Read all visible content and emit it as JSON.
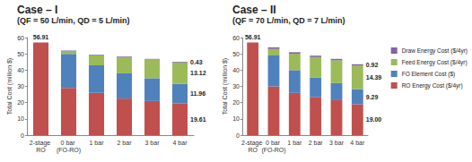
{
  "chart_data": [
    {
      "type": "bar",
      "title": "Case – I",
      "subtitle": "(QF = 50 L/min, QD = 5 L/min)",
      "ylabel": "Total Cost (million $)",
      "stacked": true,
      "grid": false,
      "data_labels": true,
      "categories": [
        "2-stage RO",
        "0 bar (FO-RO)",
        "1 bar",
        "2 bar",
        "3 bar",
        "4 bar"
      ],
      "ylim": [
        0,
        60
      ],
      "yticks": [
        0,
        10,
        20,
        30,
        40,
        50,
        60
      ],
      "series": [
        {
          "name": "RO Energy Cost ($/4yr)",
          "color": "#c0504d",
          "values": [
            56.91,
            29,
            26,
            22.5,
            21,
            19.61
          ],
          "value_labels": [
            "56.91",
            null,
            null,
            null,
            null,
            "19.61"
          ]
        },
        {
          "name": "FO Element Cost ($)",
          "color": "#4f81bd",
          "values": [
            null,
            21,
            17,
            15.5,
            14,
            11.96
          ],
          "value_labels": [
            null,
            null,
            null,
            null,
            null,
            "11.96"
          ]
        },
        {
          "name": "Feed Energy Cost ($/4yr)",
          "color": "#9bbb59",
          "values": [
            null,
            1.5,
            6,
            10,
            11.5,
            13.12
          ],
          "value_labels": [
            null,
            null,
            null,
            null,
            null,
            "13.12"
          ]
        },
        {
          "name": "Draw Energy Cost ($/4yr)",
          "color": "#8064a2",
          "values": [
            null,
            0.5,
            0.4,
            0.4,
            0.4,
            0.43
          ],
          "value_labels": [
            null,
            null,
            null,
            null,
            null,
            "0.43"
          ]
        }
      ]
    },
    {
      "type": "bar",
      "title": "Case – II",
      "subtitle": "(QF = 70 L/min, QD = 7 L/min)",
      "ylabel": "Total Cost (million $)",
      "stacked": true,
      "grid": false,
      "data_labels": true,
      "legend": "right",
      "categories": [
        "2-stage RO",
        "0 bar (FO-RO)",
        "1 bar",
        "2 bar",
        "3 bar",
        "4 bar"
      ],
      "ylim": [
        0,
        60
      ],
      "yticks": [
        0,
        10,
        20,
        30,
        40,
        50,
        60
      ],
      "series": [
        {
          "name": "RO Energy Cost ($/4yr)",
          "color": "#c0504d",
          "values": [
            56.91,
            30,
            26,
            23.5,
            21.5,
            19.0
          ],
          "value_labels": [
            "56.91",
            null,
            null,
            null,
            null,
            "19.00"
          ]
        },
        {
          "name": "FO Element Cost ($)",
          "color": "#4f81bd",
          "values": [
            null,
            19,
            14,
            12,
            10.5,
            9.29
          ],
          "value_labels": [
            null,
            null,
            null,
            null,
            null,
            "9.29"
          ]
        },
        {
          "name": "Feed Energy Cost ($/4yr)",
          "color": "#9bbb59",
          "values": [
            null,
            4,
            10,
            12.5,
            14,
            14.39
          ],
          "value_labels": [
            null,
            null,
            null,
            null,
            null,
            "14.39"
          ]
        },
        {
          "name": "Draw Energy Cost ($/4yr)",
          "color": "#8064a2",
          "values": [
            null,
            1,
            1,
            0.9,
            0.9,
            0.92
          ],
          "value_labels": [
            null,
            null,
            null,
            null,
            null,
            "0.92"
          ]
        }
      ]
    }
  ]
}
